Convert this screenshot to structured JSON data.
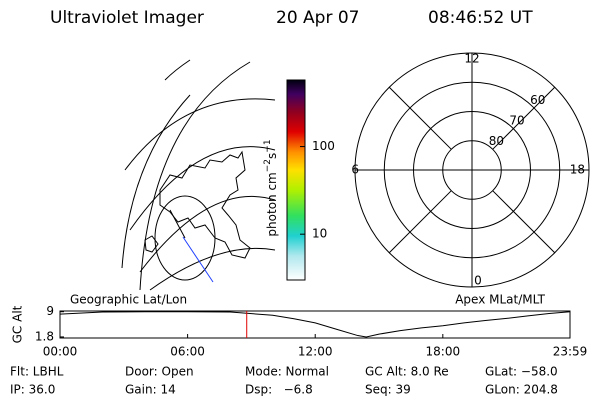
{
  "header": {
    "title": "Ultraviolet Imager",
    "date": "20 Apr 07",
    "time": "08:46:52 UT"
  },
  "colorbar": {
    "label": {
      "base": "photon cm",
      "exp1": "−2",
      "mid": "s",
      "exp2": "−1"
    },
    "log": true,
    "ylim": [
      3,
      575
    ],
    "yticks": [
      10,
      100
    ]
  },
  "polar": {
    "rlim": [
      90,
      50
    ],
    "rings": [
      80,
      70,
      60
    ],
    "mlt_labels": [
      {
        "value": 12,
        "label": "12"
      },
      {
        "value": 18,
        "label": "18"
      },
      {
        "value": 6,
        "label": "6"
      },
      {
        "value": 0,
        "label": "0"
      }
    ]
  },
  "panel_labels": {
    "left": "Geographic Lat/Lon",
    "right": "Apex MLat/MLT"
  },
  "chart_data": {
    "type": "line",
    "ylabel": "GC Alt",
    "x": [
      0,
      2,
      4,
      6,
      8,
      10,
      11,
      12,
      13,
      14,
      14.4,
      15,
      16,
      17,
      18,
      19,
      20,
      21,
      22,
      23,
      23.98
    ],
    "series": [
      {
        "color": "#000000",
        "values": [
          8.3,
          8.9,
          9.0,
          9.0,
          8.9,
          8.0,
          7.0,
          5.8,
          4.0,
          2.2,
          1.8,
          2.6,
          3.6,
          4.4,
          5.0,
          5.8,
          6.5,
          7.1,
          7.8,
          8.5,
          9.0
        ]
      }
    ],
    "current_time": 8.78,
    "current_color": "#e00000",
    "xlim": [
      0,
      23.98
    ],
    "ylim": [
      1.5,
      9.2
    ],
    "yticks": [
      1.8,
      9.0
    ],
    "xticks": [
      {
        "value": 0,
        "label": "00:00"
      },
      {
        "value": 6,
        "label": "06:00"
      },
      {
        "value": 12,
        "label": "12:00"
      },
      {
        "value": 18,
        "label": "18:00"
      },
      {
        "value": 23.98,
        "label": "23:59"
      }
    ]
  },
  "footer": {
    "rows": [
      [
        "Flt: LBHL",
        "Door: Open",
        "Mode: Normal",
        "GC Alt: 8.0 Re",
        "GLat: −58.0"
      ],
      [
        "IP: 36.0",
        "Gain: 14",
        "Dsp:   −6.8",
        "Seq: 39",
        "GLon: 204.8"
      ]
    ]
  }
}
